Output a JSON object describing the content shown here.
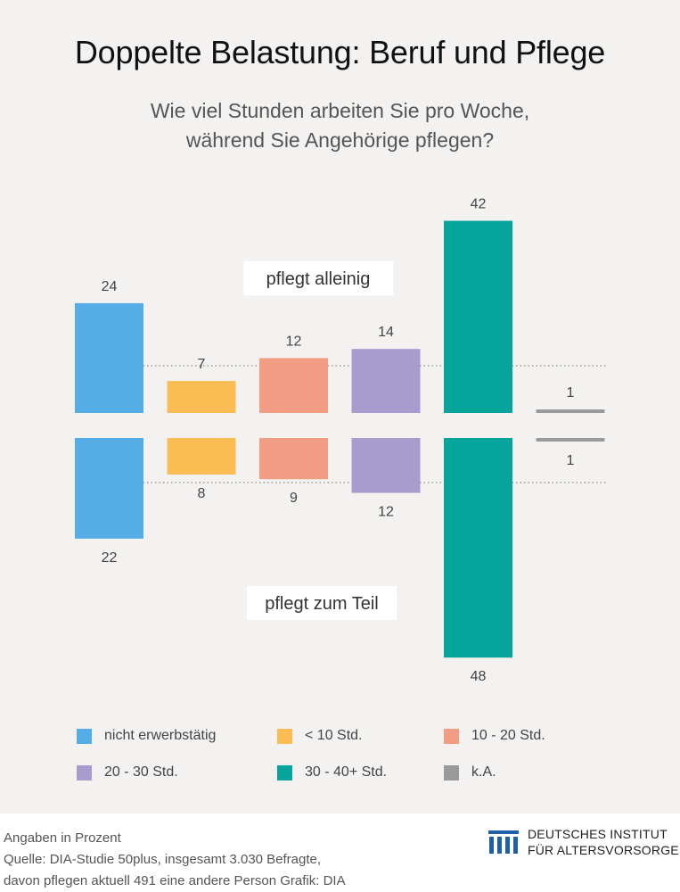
{
  "colors": {
    "background": "#f3f2f1",
    "nicht_erwerbstaetig": "#54ade6",
    "lt10": "#fbbd53",
    "s10_20": "#f29c84",
    "s20_30": "#a89ccf",
    "s30_40": "#05a59b",
    "ka": "#9a9a9a",
    "logo": "#1f5fa8"
  },
  "header": {
    "title": "Doppelte Belastung: Beruf und Pflege",
    "subtitle_line1": "Wie viel Stunden arbeiten Sie pro Woche,",
    "subtitle_line2": "während Sie Angehörige pflegen?"
  },
  "chart_data": {
    "type": "bar",
    "layout": "mirrored",
    "unit": "Prozent",
    "categories": [
      "nicht erwerbstätig",
      "< 10 Std.",
      "10 - 20 Std.",
      "20 - 30 Std.",
      "30 - 40+ Std.",
      "k.A."
    ],
    "series": [
      {
        "name": "pflegt alleinig",
        "values": [
          24,
          7,
          12,
          14,
          42,
          1
        ]
      },
      {
        "name": "pflegt zum Teil",
        "values": [
          22,
          8,
          9,
          12,
          48,
          1
        ]
      }
    ],
    "ylim": [
      0,
      48
    ],
    "grid": "dotted reference line at average"
  },
  "legend": [
    {
      "label": "nicht erwerbstätig",
      "color_key": "nicht_erwerbstaetig"
    },
    {
      "label": "< 10 Std.",
      "color_key": "lt10"
    },
    {
      "label": "10 - 20 Std.",
      "color_key": "s10_20"
    },
    {
      "label": "20 - 30 Std.",
      "color_key": "s20_30"
    },
    {
      "label": "30 - 40+ Std.",
      "color_key": "s30_40"
    },
    {
      "label": "k.A.",
      "color_key": "ka"
    }
  ],
  "footer": {
    "line1": "Angaben in Prozent",
    "line2": "Quelle: DIA-Studie 50plus, insgesamt 3.030 Befragte,",
    "line3": "davon pflegen aktuell 491 eine andere Person  Grafik: DIA"
  },
  "logo": {
    "line1": "DEUTSCHES INSTITUT",
    "line2": "FÜR ALTERSVORSORGE"
  }
}
